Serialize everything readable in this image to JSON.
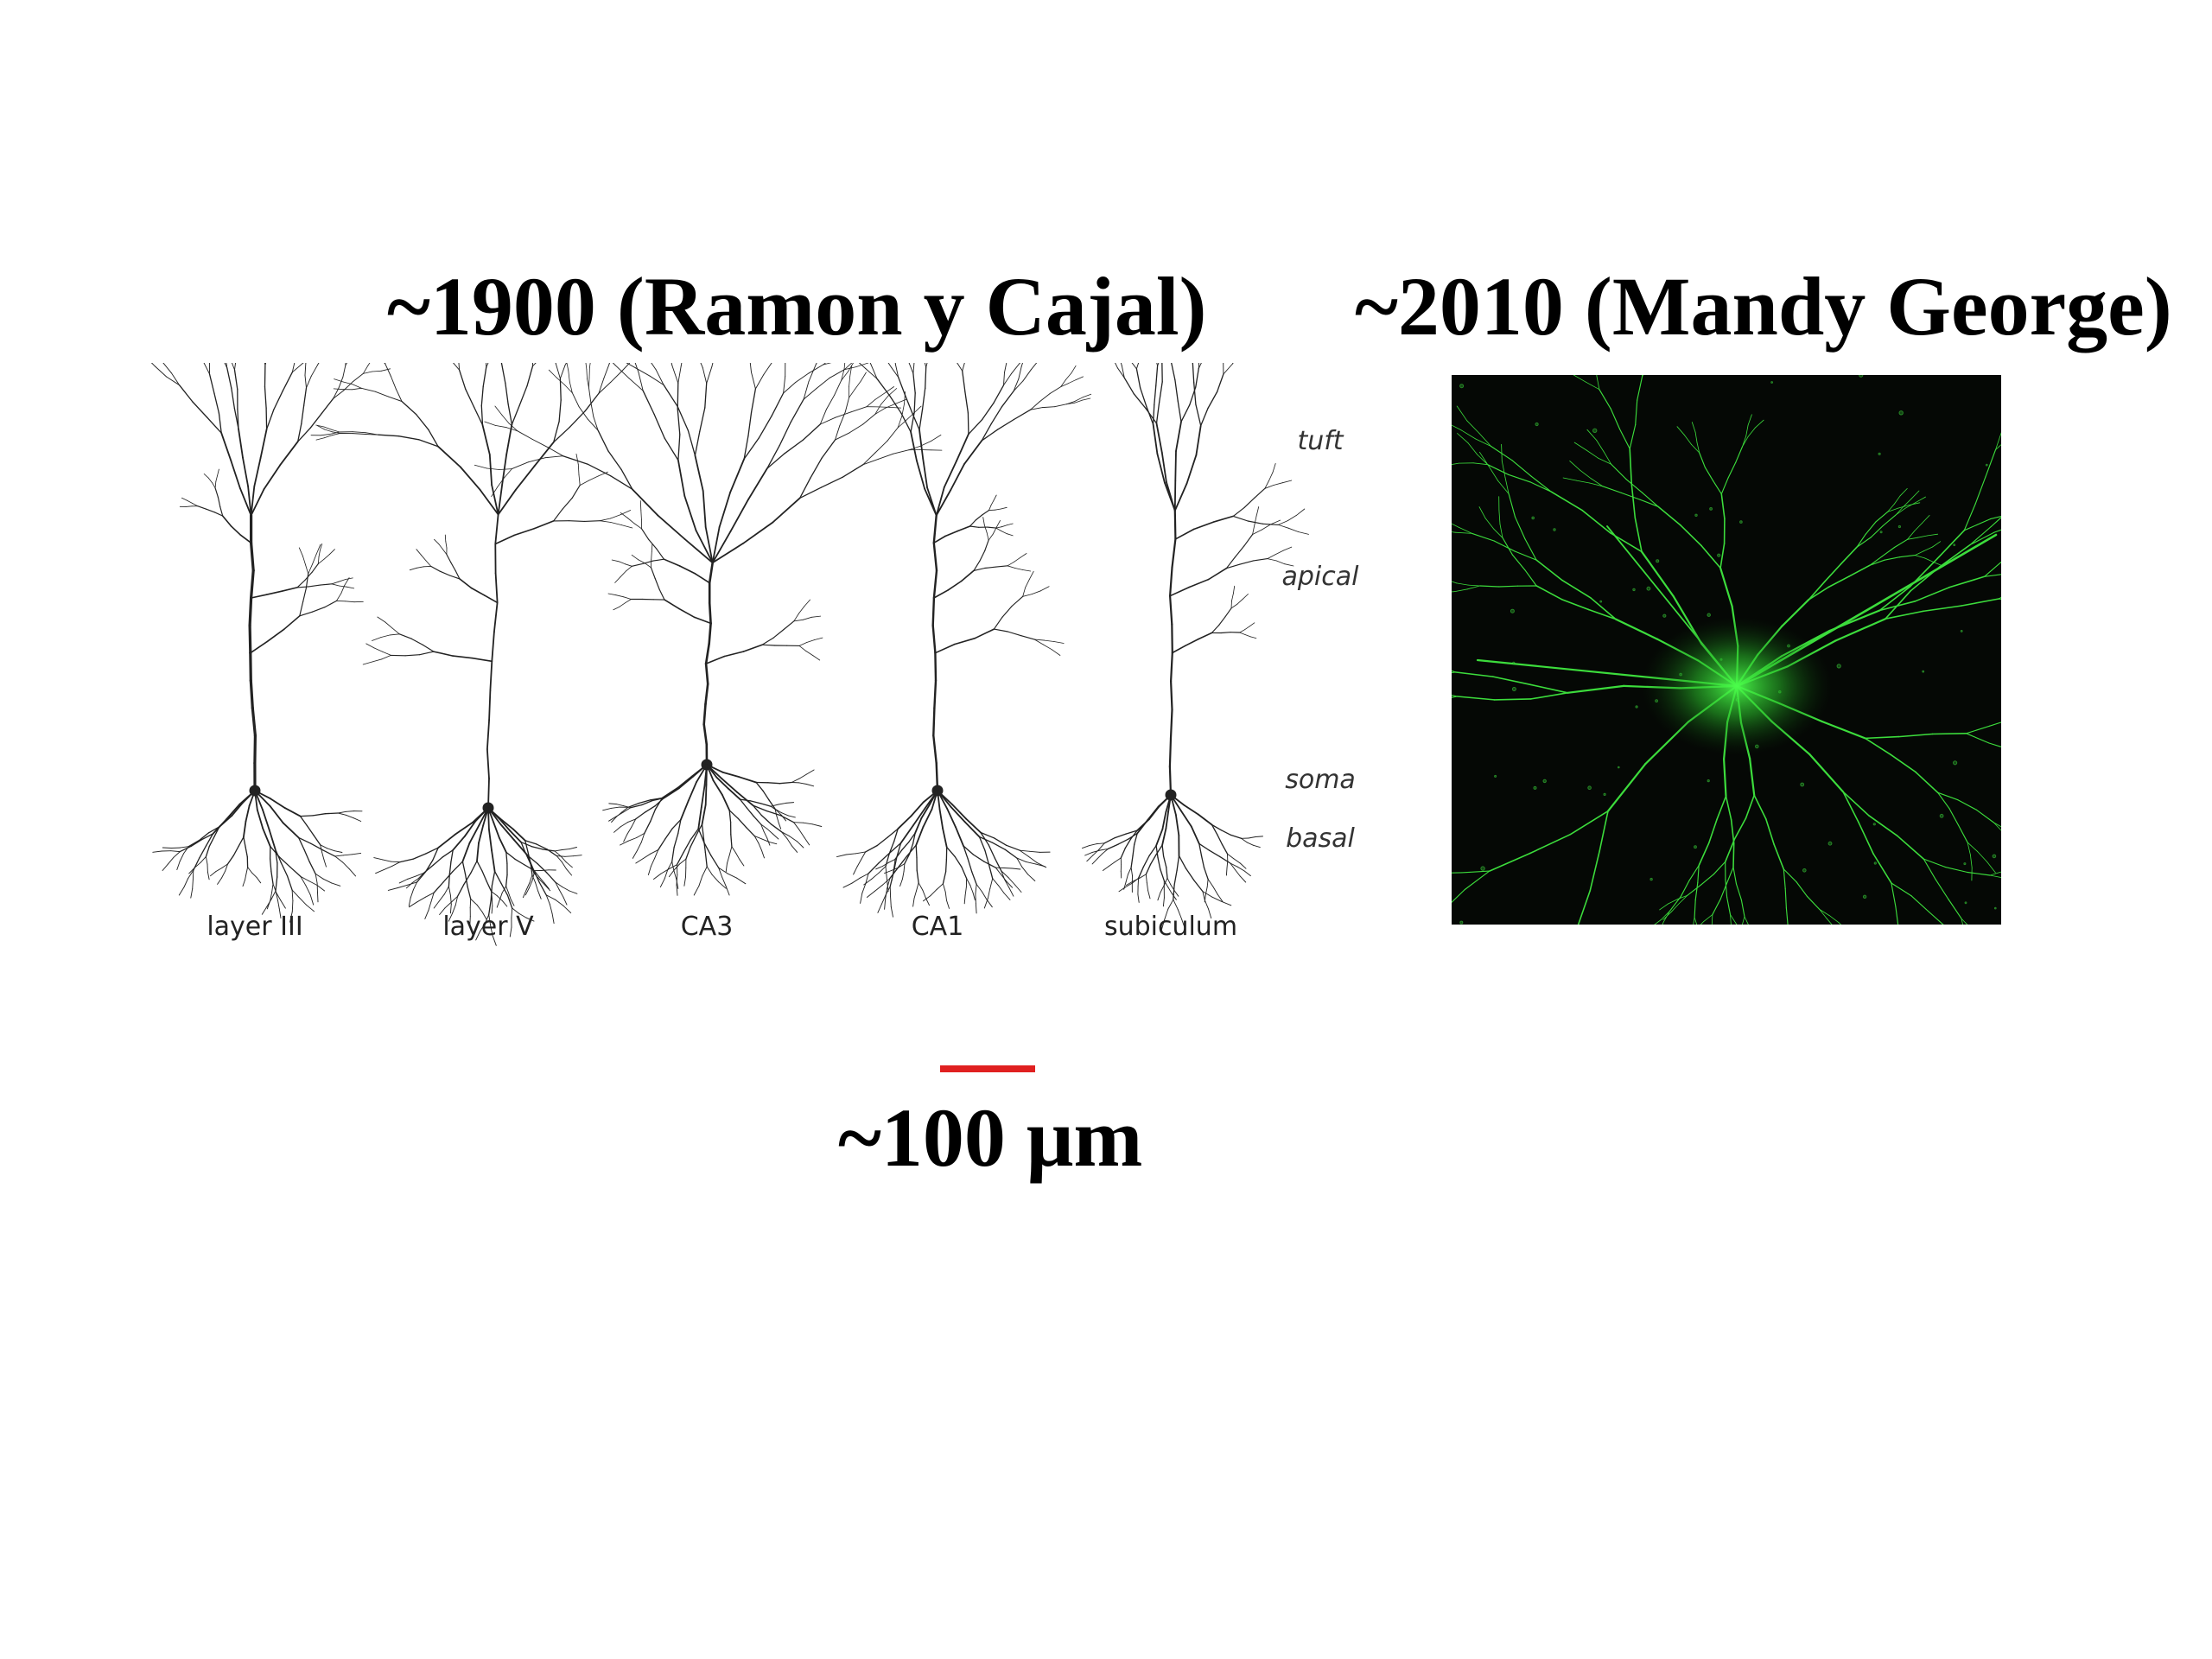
{
  "titles": {
    "left": "~1900 (Ramon y Cajal)",
    "right": "~2010 (Mandy George)"
  },
  "neuron_drawings": {
    "cells": [
      "layer III",
      "layer V",
      "CA3",
      "CA1",
      "subiculum"
    ],
    "regions": [
      "tuft",
      "apical",
      "soma",
      "basal"
    ]
  },
  "scale": {
    "label": "~100 μm",
    "bar_color": "#e02020"
  },
  "colors": {
    "ink": "#222222",
    "fluorescence": "#3cdc3c",
    "micrograph_background": "#050805"
  }
}
